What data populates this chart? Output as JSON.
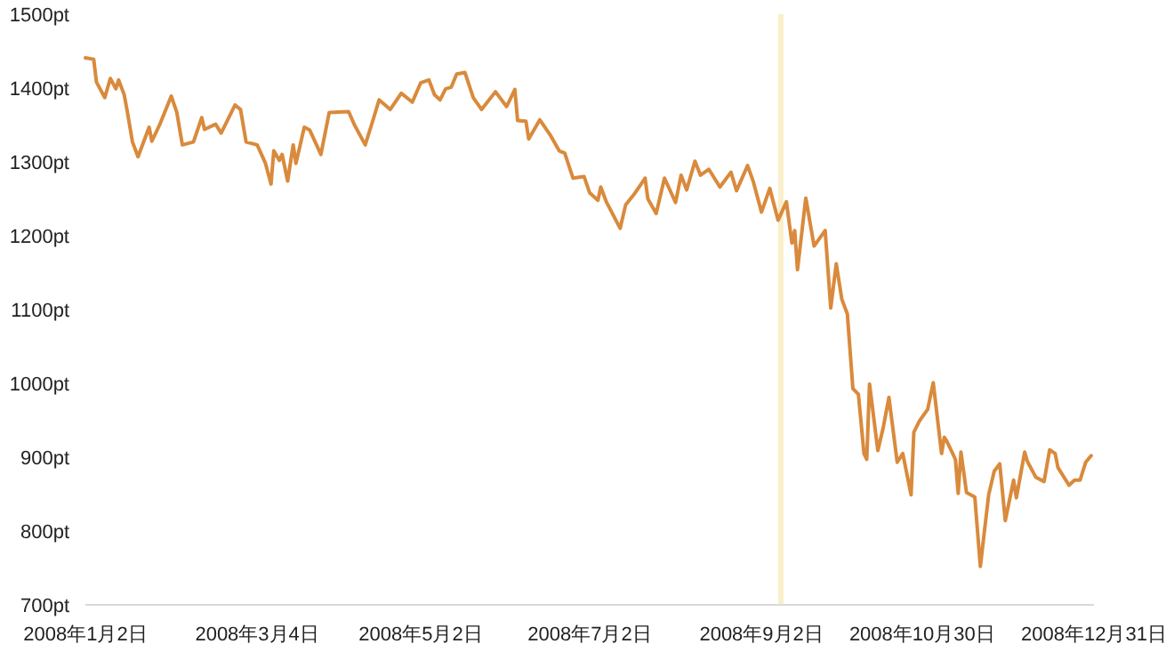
{
  "chart_data": {
    "type": "line",
    "x": [
      "2008-01-02",
      "2008-01-05",
      "2008-01-06",
      "2008-01-09",
      "2008-01-11",
      "2008-01-13",
      "2008-01-14",
      "2008-01-16",
      "2008-01-17",
      "2008-01-19",
      "2008-01-21",
      "2008-01-25",
      "2008-01-26",
      "2008-01-29",
      "2008-02-02",
      "2008-02-04",
      "2008-02-06",
      "2008-02-10",
      "2008-02-13",
      "2008-02-14",
      "2008-02-18",
      "2008-02-20",
      "2008-02-25",
      "2008-02-27",
      "2008-02-29",
      "2008-03-04",
      "2008-03-07",
      "2008-03-09",
      "2008-03-10",
      "2008-03-12",
      "2008-03-13",
      "2008-03-15",
      "2008-03-17",
      "2008-03-18",
      "2008-03-21",
      "2008-03-23",
      "2008-03-27",
      "2008-03-30",
      "2008-04-06",
      "2008-04-08",
      "2008-04-12",
      "2008-04-15",
      "2008-04-17",
      "2008-04-21",
      "2008-04-25",
      "2008-04-29",
      "2008-05-02",
      "2008-05-05",
      "2008-05-07",
      "2008-05-09",
      "2008-05-11",
      "2008-05-13",
      "2008-05-15",
      "2008-05-18",
      "2008-05-21",
      "2008-05-24",
      "2008-05-29",
      "2008-06-02",
      "2008-06-05",
      "2008-06-06",
      "2008-06-09",
      "2008-06-10",
      "2008-06-14",
      "2008-06-18",
      "2008-06-21",
      "2008-06-23",
      "2008-06-26",
      "2008-06-30",
      "2008-07-02",
      "2008-07-05",
      "2008-07-06",
      "2008-07-08",
      "2008-07-13",
      "2008-07-15",
      "2008-07-18",
      "2008-07-22",
      "2008-07-23",
      "2008-07-26",
      "2008-07-29",
      "2008-08-02",
      "2008-08-04",
      "2008-08-06",
      "2008-08-09",
      "2008-08-11",
      "2008-08-14",
      "2008-08-18",
      "2008-08-22",
      "2008-08-24",
      "2008-08-28",
      "2008-08-30",
      "2008-09-02",
      "2008-09-05",
      "2008-09-08",
      "2008-09-11",
      "2008-09-13",
      "2008-09-14",
      "2008-09-15",
      "2008-09-18",
      "2008-09-21",
      "2008-09-25",
      "2008-09-27",
      "2008-09-29",
      "2008-10-01",
      "2008-10-03",
      "2008-10-05",
      "2008-10-07",
      "2008-10-09",
      "2008-10-10",
      "2008-10-11",
      "2008-10-14",
      "2008-10-16",
      "2008-10-18",
      "2008-10-21",
      "2008-10-23",
      "2008-10-26",
      "2008-10-27",
      "2008-10-29",
      "2008-11-01",
      "2008-11-03",
      "2008-11-06",
      "2008-11-07",
      "2008-11-08",
      "2008-11-11",
      "2008-11-12",
      "2008-11-13",
      "2008-11-15",
      "2008-11-18",
      "2008-11-20",
      "2008-11-23",
      "2008-11-25",
      "2008-11-27",
      "2008-11-29",
      "2008-12-02",
      "2008-12-03",
      "2008-12-06",
      "2008-12-07",
      "2008-12-10",
      "2008-12-13",
      "2008-12-15",
      "2008-12-17",
      "2008-12-18",
      "2008-12-22",
      "2008-12-24",
      "2008-12-26",
      "2008-12-28",
      "2008-12-30"
    ],
    "series": [
      {
        "color": "#d98a3c",
        "values": [
          1441,
          1439,
          1408,
          1387,
          1413,
          1399,
          1411,
          1391,
          1371,
          1327,
          1307,
          1347,
          1328,
          1352,
          1389,
          1367,
          1323,
          1327,
          1360,
          1344,
          1351,
          1339,
          1377,
          1371,
          1327,
          1323,
          1298,
          1270,
          1315,
          1302,
          1310,
          1274,
          1323,
          1298,
          1347,
          1343,
          1310,
          1367,
          1368,
          1351,
          1323,
          1359,
          1384,
          1371,
          1393,
          1381,
          1407,
          1411,
          1391,
          1384,
          1399,
          1401,
          1419,
          1421,
          1387,
          1371,
          1395,
          1375,
          1398,
          1356,
          1355,
          1331,
          1357,
          1335,
          1315,
          1312,
          1278,
          1280,
          1258,
          1248,
          1266,
          1246,
          1210,
          1242,
          1256,
          1278,
          1250,
          1230,
          1278,
          1245,
          1282,
          1262,
          1301,
          1282,
          1290,
          1266,
          1286,
          1261,
          1295,
          1274,
          1232,
          1264,
          1221,
          1246,
          1190,
          1207,
          1154,
          1251,
          1186,
          1207,
          1102,
          1162,
          1114,
          1094,
          993,
          985,
          905,
          897,
          999,
          909,
          941,
          981,
          893,
          905,
          849,
          934,
          949,
          965,
          1001,
          905,
          927,
          921,
          897,
          851,
          907,
          852,
          846,
          752,
          849,
          881,
          891,
          814,
          869,
          845,
          907,
          894,
          873,
          867,
          910,
          905,
          886,
          862,
          869,
          869,
          893,
          902
        ]
      }
    ],
    "xlim": [
      "2008-01-02",
      "2008-12-31"
    ],
    "xticks": [
      {
        "value": "2008-01-02",
        "label": "2008年1月2日"
      },
      {
        "value": "2008-03-04",
        "label": "2008年3月4日"
      },
      {
        "value": "2008-05-02",
        "label": "2008年5月2日"
      },
      {
        "value": "2008-07-02",
        "label": "2008年7月2日"
      },
      {
        "value": "2008-09-02",
        "label": "2008年9月2日"
      },
      {
        "value": "2008-10-30",
        "label": "2008年10月30日"
      },
      {
        "value": "2008-12-31",
        "label": "2008年12月31日"
      }
    ],
    "ylim": [
      700,
      1500
    ],
    "yticks": [
      {
        "value": 700,
        "label": "700pt"
      },
      {
        "value": 800,
        "label": "800pt"
      },
      {
        "value": 900,
        "label": "900pt"
      },
      {
        "value": 1000,
        "label": "1000pt"
      },
      {
        "value": 1100,
        "label": "1100pt"
      },
      {
        "value": 1200,
        "label": "1200pt"
      },
      {
        "value": 1300,
        "label": "1300pt"
      },
      {
        "value": 1400,
        "label": "1400pt"
      },
      {
        "value": 1500,
        "label": "1500pt"
      }
    ],
    "bands": [
      {
        "axis": "x",
        "from": "2008-09-08",
        "to": "2008-09-10",
        "color": "#f9efcb"
      }
    ],
    "grid": false,
    "marker": "none",
    "line_style": "solid"
  }
}
